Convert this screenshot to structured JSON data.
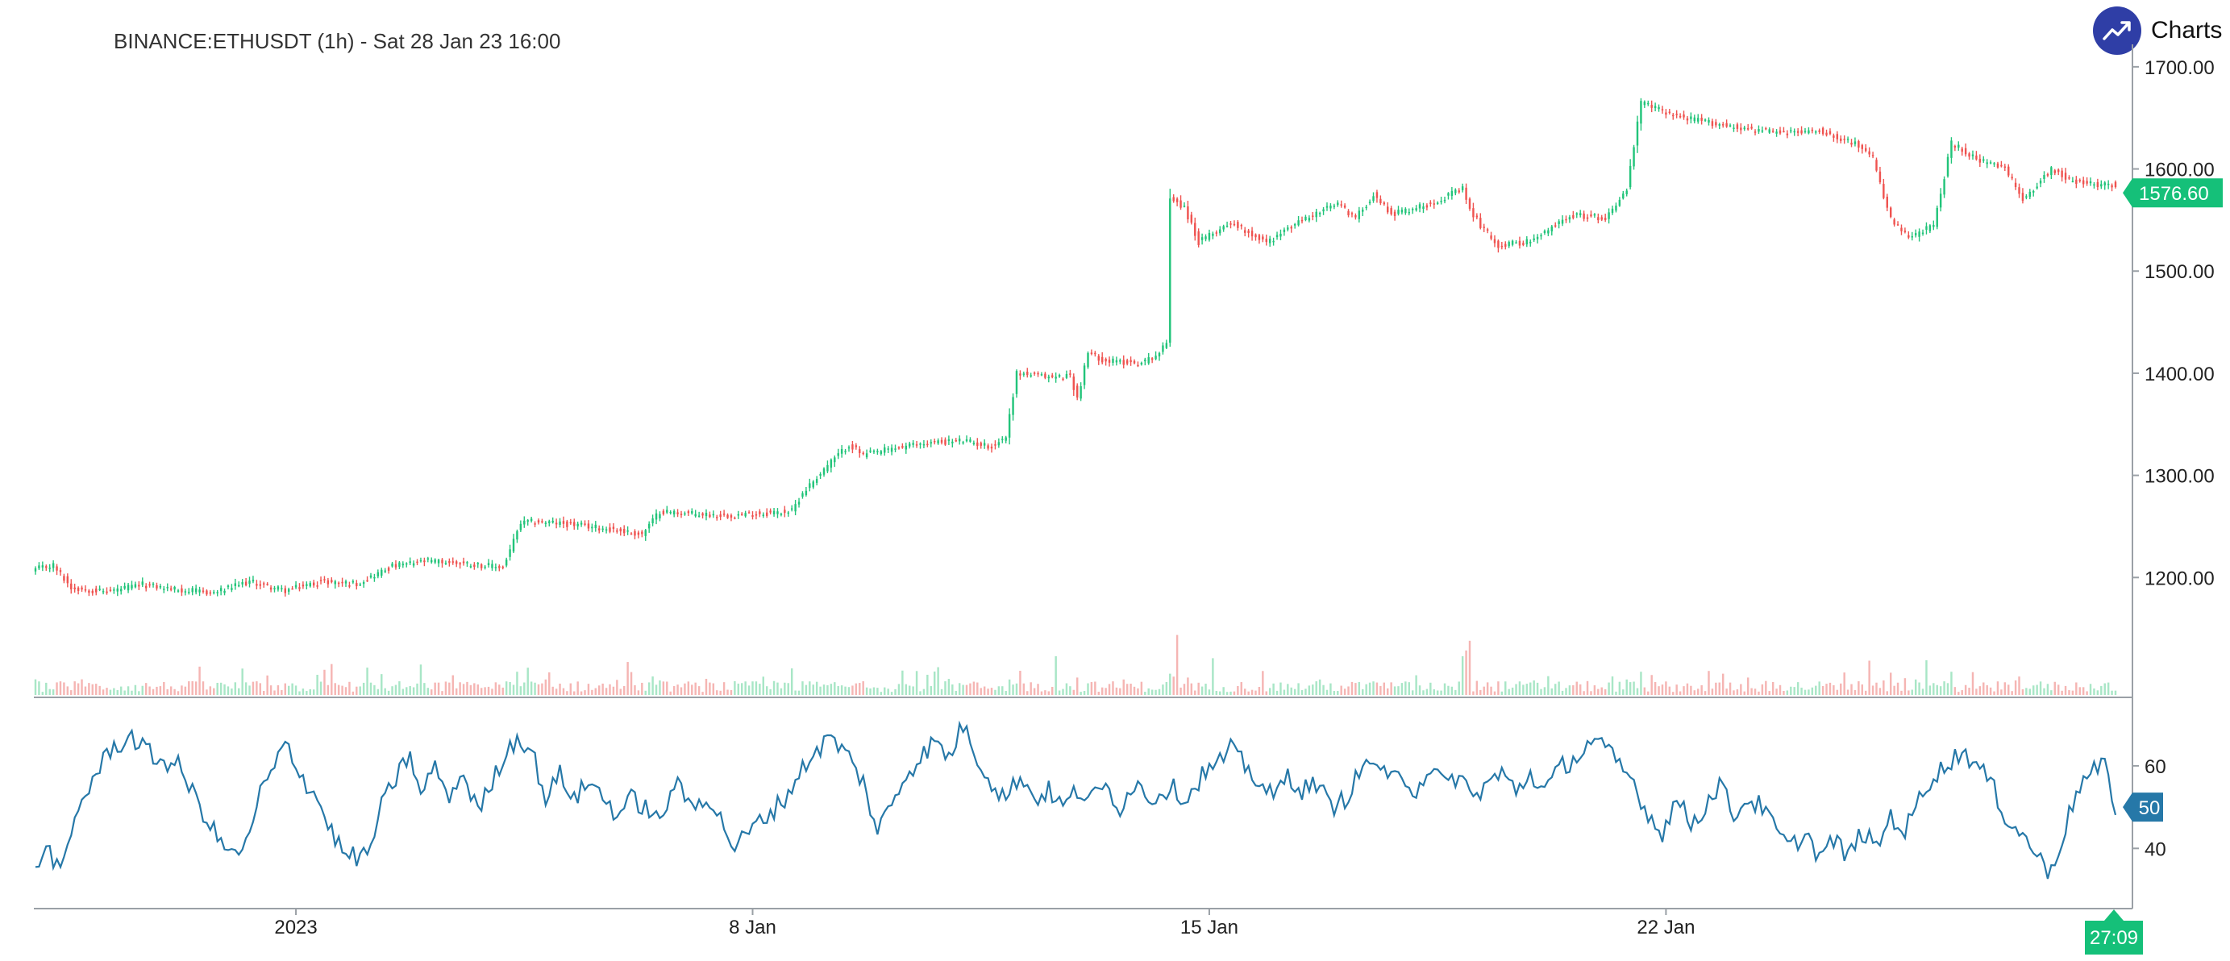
{
  "header": {
    "title": "BINANCE:ETHUSDT (1h) - Sat 28 Jan 23 16:00",
    "brand_text": "Charts p"
  },
  "colors": {
    "up": "#22c47a",
    "down": "#ef5350",
    "up_volume": "#a8e6c6",
    "down_volume": "#f5b5b3",
    "rsi": "#2678a8",
    "axis": "#9aa0a6",
    "last_price_badge": "#15c079",
    "rsi_badge": "#2678a8",
    "brand": "#2f3ea6"
  },
  "icons": {
    "brand": "trend-up-icon"
  },
  "chart_data": [
    {
      "type": "candlestick",
      "name": "price",
      "interval": "1h",
      "y_ticks": [
        "1700.00",
        "1600.00",
        "1500.00",
        "1400.00",
        "1300.00",
        "1200.00"
      ],
      "y_tick_values": [
        1700,
        1600,
        1500,
        1400,
        1300,
        1200
      ],
      "ylim": [
        1085,
        1722
      ],
      "last_price": 1576.6,
      "last_price_label": "1576.60",
      "countdown_label": "27:09",
      "anchors": [
        [
          0,
          1208
        ],
        [
          5,
          1212
        ],
        [
          10,
          1190
        ],
        [
          20,
          1186
        ],
        [
          30,
          1193
        ],
        [
          40,
          1188
        ],
        [
          50,
          1185
        ],
        [
          60,
          1196
        ],
        [
          70,
          1187
        ],
        [
          80,
          1196
        ],
        [
          90,
          1194
        ],
        [
          100,
          1211
        ],
        [
          110,
          1216
        ],
        [
          120,
          1214
        ],
        [
          125,
          1212
        ],
        [
          131,
          1210
        ],
        [
          136,
          1253
        ],
        [
          140,
          1255
        ],
        [
          150,
          1252
        ],
        [
          160,
          1248
        ],
        [
          170,
          1242
        ],
        [
          175,
          1265
        ],
        [
          185,
          1262
        ],
        [
          195,
          1261
        ],
        [
          205,
          1263
        ],
        [
          212,
          1265
        ],
        [
          215,
          1283
        ],
        [
          222,
          1310
        ],
        [
          228,
          1330
        ],
        [
          232,
          1320
        ],
        [
          240,
          1326
        ],
        [
          250,
          1332
        ],
        [
          260,
          1334
        ],
        [
          268,
          1328
        ],
        [
          272,
          1338
        ],
        [
          275,
          1400
        ],
        [
          285,
          1396
        ],
        [
          290,
          1398
        ],
        [
          292,
          1375
        ],
        [
          295,
          1420
        ],
        [
          300,
          1412
        ],
        [
          310,
          1410
        ],
        [
          315,
          1420
        ],
        [
          317,
          1430
        ],
        [
          318,
          1573
        ],
        [
          322,
          1562
        ],
        [
          326,
          1528
        ],
        [
          335,
          1548
        ],
        [
          345,
          1528
        ],
        [
          355,
          1550
        ],
        [
          365,
          1566
        ],
        [
          370,
          1552
        ],
        [
          375,
          1575
        ],
        [
          380,
          1556
        ],
        [
          390,
          1565
        ],
        [
          400,
          1580
        ],
        [
          402,
          1560
        ],
        [
          405,
          1545
        ],
        [
          410,
          1525
        ],
        [
          420,
          1530
        ],
        [
          430,
          1555
        ],
        [
          440,
          1552
        ],
        [
          446,
          1580
        ],
        [
          450,
          1665
        ],
        [
          460,
          1652
        ],
        [
          470,
          1645
        ],
        [
          478,
          1640
        ],
        [
          490,
          1635
        ],
        [
          500,
          1638
        ],
        [
          510,
          1625
        ],
        [
          515,
          1610
        ],
        [
          520,
          1550
        ],
        [
          525,
          1532
        ],
        [
          532,
          1545
        ],
        [
          537,
          1625
        ],
        [
          545,
          1608
        ],
        [
          552,
          1600
        ],
        [
          557,
          1570
        ],
        [
          565,
          1600
        ],
        [
          570,
          1590
        ],
        [
          575,
          1585
        ]
      ],
      "volume_spikes": [
        [
          1,
          0.7
        ],
        [
          6,
          0.65
        ],
        [
          47,
          0.7
        ],
        [
          68,
          0.5
        ],
        [
          70,
          0.6
        ],
        [
          100,
          0.45
        ],
        [
          132,
          0.7
        ],
        [
          135,
          1.2
        ],
        [
          143,
          0.8
        ],
        [
          175,
          0.75
        ],
        [
          217,
          0.7
        ],
        [
          222,
          0.5
        ],
        [
          262,
          0.6
        ],
        [
          273,
          0.8
        ],
        [
          276,
          1.25
        ],
        [
          286,
          2.0
        ],
        [
          292,
          0.9
        ],
        [
          305,
          0.8
        ],
        [
          318,
          1.1
        ],
        [
          320,
          3.1
        ],
        [
          323,
          0.9
        ],
        [
          330,
          1.9
        ],
        [
          360,
          0.8
        ],
        [
          375,
          0.7
        ],
        [
          395,
          0.6
        ],
        [
          400,
          2.0
        ],
        [
          401,
          2.3
        ],
        [
          402,
          2.8
        ],
        [
          410,
          0.7
        ],
        [
          420,
          0.75
        ],
        [
          446,
          0.8
        ],
        [
          450,
          1.2
        ],
        [
          473,
          1.1
        ],
        [
          480,
          0.9
        ],
        [
          518,
          0.75
        ],
        [
          520,
          1.15
        ],
        [
          527,
          0.8
        ],
        [
          537,
          1.2
        ],
        [
          550,
          0.7
        ],
        [
          555,
          0.75
        ]
      ]
    },
    {
      "type": "line",
      "name": "rsi",
      "y_ticks": [
        "60",
        "40"
      ],
      "y_tick_values": [
        60,
        40
      ],
      "ylim": [
        26,
        76
      ],
      "last_value": 50,
      "last_value_label": "50",
      "anchors": [
        [
          0,
          36
        ],
        [
          4,
          40
        ],
        [
          7,
          33
        ],
        [
          12,
          50
        ],
        [
          17,
          58
        ],
        [
          21,
          64
        ],
        [
          27,
          67
        ],
        [
          33,
          62
        ],
        [
          40,
          60
        ],
        [
          45,
          52
        ],
        [
          50,
          44
        ],
        [
          55,
          38
        ],
        [
          60,
          42
        ],
        [
          63,
          54
        ],
        [
          67,
          59
        ],
        [
          70,
          66
        ],
        [
          75,
          57
        ],
        [
          79,
          52
        ],
        [
          83,
          44
        ],
        [
          87,
          38
        ],
        [
          93,
          38
        ],
        [
          97,
          50
        ],
        [
          101,
          57
        ],
        [
          105,
          63
        ],
        [
          108,
          52
        ],
        [
          112,
          61
        ],
        [
          115,
          52
        ],
        [
          120,
          58
        ],
        [
          124,
          49
        ],
        [
          127,
          54
        ],
        [
          131,
          62
        ],
        [
          135,
          67
        ],
        [
          139,
          64
        ],
        [
          143,
          52
        ],
        [
          147,
          58
        ],
        [
          151,
          52
        ],
        [
          155,
          56
        ],
        [
          159,
          53
        ],
        [
          163,
          48
        ],
        [
          167,
          52
        ],
        [
          171,
          50
        ],
        [
          175,
          46
        ],
        [
          179,
          56
        ],
        [
          184,
          50
        ],
        [
          188,
          53
        ],
        [
          192,
          47
        ],
        [
          196,
          40
        ],
        [
          200,
          44
        ],
        [
          205,
          48
        ],
        [
          210,
          52
        ],
        [
          214,
          58
        ],
        [
          218,
          63
        ],
        [
          223,
          67
        ],
        [
          228,
          62
        ],
        [
          232,
          56
        ],
        [
          236,
          44
        ],
        [
          240,
          51
        ],
        [
          244,
          58
        ],
        [
          248,
          62
        ],
        [
          252,
          66
        ],
        [
          256,
          62
        ],
        [
          260,
          70
        ],
        [
          264,
          62
        ],
        [
          268,
          56
        ],
        [
          272,
          52
        ],
        [
          276,
          58
        ],
        [
          280,
          52
        ],
        [
          284,
          54
        ],
        [
          288,
          50
        ],
        [
          292,
          54
        ],
        [
          296,
          52
        ],
        [
          300,
          55
        ],
        [
          304,
          50
        ],
        [
          308,
          56
        ],
        [
          313,
          52
        ],
        [
          318,
          55
        ],
        [
          323,
          52
        ],
        [
          327,
          58
        ],
        [
          331,
          60
        ],
        [
          335,
          64
        ],
        [
          339,
          60
        ],
        [
          343,
          56
        ],
        [
          347,
          52
        ],
        [
          351,
          58
        ],
        [
          355,
          54
        ],
        [
          359,
          56
        ],
        [
          363,
          50
        ],
        [
          367,
          52
        ],
        [
          371,
          58
        ],
        [
          375,
          62
        ],
        [
          379,
          56
        ],
        [
          383,
          58
        ],
        [
          387,
          54
        ],
        [
          391,
          60
        ],
        [
          395,
          55
        ],
        [
          399,
          58
        ],
        [
          403,
          52
        ],
        [
          407,
          56
        ],
        [
          411,
          58
        ],
        [
          415,
          54
        ],
        [
          419,
          58
        ],
        [
          423,
          54
        ],
        [
          428,
          60
        ],
        [
          432,
          62
        ],
        [
          436,
          66
        ],
        [
          440,
          64
        ],
        [
          444,
          60
        ],
        [
          448,
          56
        ],
        [
          452,
          48
        ],
        [
          456,
          44
        ],
        [
          460,
          52
        ],
        [
          464,
          46
        ],
        [
          468,
          50
        ],
        [
          472,
          56
        ],
        [
          476,
          48
        ],
        [
          480,
          52
        ],
        [
          484,
          50
        ],
        [
          488,
          44
        ],
        [
          492,
          40
        ],
        [
          496,
          44
        ],
        [
          500,
          38
        ],
        [
          504,
          42
        ],
        [
          508,
          38
        ],
        [
          512,
          44
        ],
        [
          516,
          40
        ],
        [
          520,
          48
        ],
        [
          524,
          44
        ],
        [
          528,
          52
        ],
        [
          532,
          58
        ],
        [
          536,
          60
        ],
        [
          540,
          64
        ],
        [
          544,
          60
        ],
        [
          548,
          56
        ],
        [
          552,
          48
        ],
        [
          556,
          44
        ],
        [
          560,
          40
        ],
        [
          564,
          34
        ],
        [
          568,
          42
        ],
        [
          572,
          54
        ],
        [
          576,
          58
        ],
        [
          580,
          60
        ],
        [
          583,
          50
        ]
      ]
    }
  ],
  "x_axis": {
    "labels": [
      {
        "text": "2023",
        "index": 73
      },
      {
        "text": "8 Jan",
        "index": 201
      },
      {
        "text": "15 Jan",
        "index": 329
      },
      {
        "text": "22 Jan",
        "index": 457
      }
    ],
    "bar_count": 584
  }
}
